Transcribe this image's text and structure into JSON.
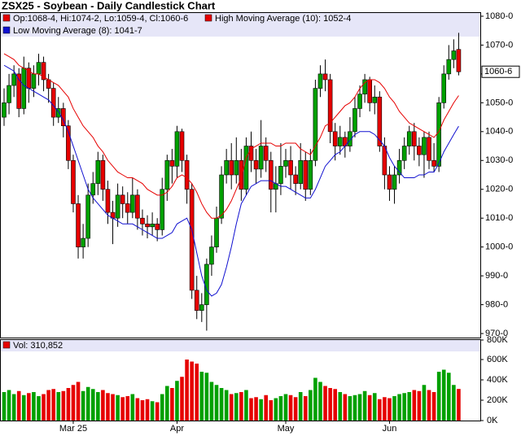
{
  "chart_data": {
    "type": "candlestick",
    "title": "ZSX25 - Soybean - Daily Candlestick Chart",
    "legend_text": "Op:1068-4, Hi:1074-2, Lo:1059-4, Cl:1060-6",
    "last_price_label": "1060-6",
    "up_color": "#00a000",
    "down_color": "#e60000",
    "categories": [
      null,
      null,
      null,
      null,
      null,
      null,
      null,
      null,
      null,
      null,
      null,
      null,
      null,
      null,
      "Mar 25",
      null,
      null,
      null,
      null,
      null,
      null,
      null,
      null,
      null,
      null,
      null,
      null,
      null,
      null,
      null,
      null,
      null,
      null,
      null,
      null,
      "Apr",
      null,
      null,
      null,
      null,
      null,
      null,
      null,
      null,
      null,
      null,
      null,
      null,
      null,
      null,
      null,
      null,
      null,
      null,
      null,
      null,
      null,
      "May",
      null,
      null,
      null,
      null,
      null,
      null,
      null,
      null,
      null,
      null,
      null,
      null,
      null,
      null,
      null,
      null,
      null,
      null,
      null,
      null,
      "Jun",
      null,
      null,
      null,
      null,
      null,
      null,
      null,
      null,
      null,
      null,
      null,
      null,
      null,
      null
    ],
    "open": [
      1045,
      1050,
      1056,
      1060,
      1048,
      1062,
      1055,
      1060,
      1064,
      1058,
      1055,
      1045,
      1048,
      1042,
      1030,
      1015,
      1000,
      1003,
      1018,
      1022,
      1030,
      1020,
      1012,
      1010,
      1018,
      1015,
      1012,
      1018,
      1010,
      1008,
      1007,
      1008,
      1006,
      1020,
      1030,
      1028,
      1040,
      1030,
      1020,
      985,
      978,
      980,
      994,
      1000,
      1010,
      1025,
      1030,
      1025,
      1030,
      1020,
      1035,
      1030,
      1027,
      1035,
      1030,
      1020,
      1022,
      1028,
      1030,
      1025,
      1022,
      1030,
      1020,
      1030,
      1055,
      1060,
      1058,
      1040,
      1035,
      1038,
      1035,
      1040,
      1048,
      1053,
      1058,
      1050,
      1052,
      1035,
      1025,
      1020,
      1025,
      1030,
      1035,
      1040,
      1035,
      1032,
      1038,
      1030,
      1028,
      1050,
      1060,
      1065,
      1068.5
    ],
    "high": [
      1055,
      1060,
      1063,
      1062,
      1066,
      1064,
      1063,
      1067,
      1066,
      1060,
      1057,
      1052,
      1050,
      1044,
      1032,
      1018,
      1008,
      1022,
      1026,
      1033,
      1032,
      1023,
      1016,
      1022,
      1021,
      1019,
      1024,
      1020,
      1013,
      1011,
      1012,
      1010,
      1024,
      1032,
      1034,
      1042,
      1041,
      1032,
      1022,
      990,
      984,
      996,
      1004,
      1014,
      1028,
      1034,
      1036,
      1038,
      1034,
      1038,
      1040,
      1034,
      1044,
      1038,
      1033,
      1028,
      1036,
      1034,
      1035,
      1028,
      1036,
      1033,
      1034,
      1058,
      1063,
      1065,
      1060,
      1043,
      1042,
      1040,
      1045,
      1052,
      1056,
      1060,
      1059,
      1056,
      1054,
      1038,
      1028,
      1028,
      1034,
      1038,
      1042,
      1043,
      1038,
      1040,
      1040,
      1036,
      1052,
      1063,
      1070,
      1072,
      1074.25
    ],
    "low": [
      1042,
      1046,
      1052,
      1045,
      1046,
      1050,
      1052,
      1056,
      1054,
      1050,
      1042,
      1043,
      1038,
      1027,
      1012,
      996,
      996,
      1000,
      1015,
      1018,
      1016,
      1008,
      1001,
      1007,
      1010,
      1008,
      1010,
      1006,
      1004,
      1003,
      1004,
      1002,
      1004,
      1016,
      1022,
      1024,
      1026,
      1015,
      982,
      975,
      974,
      971,
      990,
      998,
      1008,
      1022,
      1020,
      1022,
      1016,
      1018,
      1026,
      1022,
      1024,
      1026,
      1012,
      1012,
      1018,
      1024,
      1020,
      1018,
      1020,
      1016,
      1018,
      1028,
      1052,
      1054,
      1036,
      1030,
      1032,
      1031,
      1033,
      1038,
      1045,
      1050,
      1047,
      1046,
      1033,
      1020,
      1016,
      1015,
      1022,
      1027,
      1032,
      1030,
      1028,
      1024,
      1027,
      1026,
      1026,
      1048,
      1058,
      1062,
      1059.5
    ],
    "close": [
      1050,
      1056,
      1060,
      1048,
      1062,
      1055,
      1060,
      1064,
      1058,
      1055,
      1045,
      1048,
      1042,
      1030,
      1015,
      1000,
      1003,
      1018,
      1022,
      1030,
      1020,
      1012,
      1010,
      1018,
      1015,
      1012,
      1018,
      1010,
      1008,
      1007,
      1008,
      1006,
      1020,
      1030,
      1028,
      1040,
      1030,
      1020,
      985,
      978,
      980,
      994,
      1000,
      1010,
      1025,
      1030,
      1025,
      1030,
      1020,
      1035,
      1030,
      1027,
      1035,
      1030,
      1020,
      1022,
      1028,
      1030,
      1025,
      1022,
      1030,
      1020,
      1030,
      1055,
      1060,
      1058,
      1040,
      1035,
      1038,
      1035,
      1040,
      1048,
      1053,
      1058,
      1050,
      1052,
      1035,
      1025,
      1020,
      1025,
      1030,
      1035,
      1040,
      1035,
      1032,
      1038,
      1030,
      1028,
      1050,
      1060,
      1065,
      1068,
      1060.75
    ],
    "ylim": [
      968.6,
      1081.4
    ],
    "yticks": [
      {
        "value": 970,
        "label": "970-0"
      },
      {
        "value": 980,
        "label": "980-0"
      },
      {
        "value": 990,
        "label": "990-0"
      },
      {
        "value": 1000,
        "label": "1000-0"
      },
      {
        "value": 1010,
        "label": "1010-0"
      },
      {
        "value": 1020,
        "label": "1020-0"
      },
      {
        "value": 1030,
        "label": "1030-0"
      },
      {
        "value": 1040,
        "label": "1040-0"
      },
      {
        "value": 1050,
        "label": "1050-0"
      },
      {
        "value": 1060,
        "label": "1060-0"
      },
      {
        "value": 1070,
        "label": "1070-0"
      },
      {
        "value": 1080,
        "label": "1080-0"
      }
    ],
    "series": [
      {
        "name": "High Moving Average (10): 1052-4",
        "color": "#e60000",
        "values": [
          1067,
          1066,
          1065,
          1063,
          1062,
          1061,
          1060,
          1060,
          1059,
          1058,
          1057,
          1056,
          1054,
          1052,
          1048,
          1045,
          1042,
          1040,
          1038,
          1035,
          1033,
          1030,
          1028,
          1026,
          1025,
          1024,
          1024,
          1023,
          1022,
          1020,
          1019,
          1018,
          1018,
          1019,
          1021,
          1024,
          1025,
          1024,
          1022,
          1019,
          1015,
          1012,
          1010,
          1010,
          1011,
          1013,
          1016,
          1020,
          1024,
          1031,
          1034,
          1035,
          1036,
          1036,
          1036,
          1035,
          1035,
          1036,
          1036,
          1036,
          1034,
          1033,
          1032,
          1035,
          1038,
          1042,
          1043,
          1045,
          1047,
          1049,
          1050,
          1052,
          1055,
          1057,
          1058,
          1058,
          1057,
          1055,
          1052,
          1050,
          1047,
          1045,
          1043,
          1042,
          1041,
          1040,
          1039,
          1038,
          1040,
          1044,
          1047,
          1050,
          1052.5
        ]
      },
      {
        "name": "Low Moving Average (8): 1041-7",
        "color": "#1010d0",
        "values": [
          1063,
          1062,
          1061,
          1058,
          1056,
          1055,
          1054,
          1053,
          1052,
          1051,
          1049,
          1047,
          1044,
          1040,
          1035,
          1030,
          1025,
          1020,
          1017,
          1015,
          1013,
          1011,
          1010,
          1009,
          1008,
          1008,
          1008,
          1007,
          1006,
          1005,
          1004,
          1003,
          1003,
          1004,
          1005,
          1008,
          1009,
          1010,
          1006,
          998,
          990,
          985,
          983,
          984,
          987,
          993,
          1000,
          1008,
          1015,
          1018,
          1021,
          1022,
          1023,
          1023,
          1023,
          1022,
          1021,
          1021,
          1020,
          1019,
          1018,
          1017,
          1017,
          1020,
          1024,
          1028,
          1030,
          1032,
          1033,
          1035,
          1037,
          1039,
          1040,
          1040,
          1040,
          1039,
          1037,
          1035,
          1031,
          1028,
          1026,
          1024,
          1024,
          1024,
          1025,
          1025,
          1026,
          1026,
          1029,
          1033,
          1036,
          1039,
          1041.875
        ]
      }
    ],
    "volume": {
      "legend_text": "Vol: 310,852",
      "values": [
        280000,
        300000,
        260000,
        290000,
        250000,
        270000,
        280000,
        240000,
        260000,
        300000,
        310000,
        280000,
        290000,
        320000,
        350000,
        380000,
        290000,
        330000,
        310000,
        280000,
        300000,
        270000,
        260000,
        250000,
        230000,
        240000,
        260000,
        220000,
        200000,
        210000,
        190000,
        180000,
        260000,
        340000,
        320000,
        390000,
        430000,
        600000,
        580000,
        560000,
        480000,
        470000,
        380000,
        350000,
        320000,
        300000,
        260000,
        270000,
        280000,
        300000,
        220000,
        230000,
        210000,
        250000,
        200000,
        220000,
        240000,
        260000,
        250000,
        230000,
        280000,
        240000,
        300000,
        420000,
        380000,
        340000,
        320000,
        310000,
        280000,
        260000,
        240000,
        250000,
        260000,
        290000,
        250000,
        270000,
        210000,
        230000,
        220000,
        240000,
        260000,
        270000,
        280000,
        300000,
        290000,
        350000,
        300000,
        280000,
        480000,
        500000,
        470000,
        350000,
        310852
      ],
      "ylim": [
        0,
        800000
      ],
      "yticks": [
        {
          "value": 0,
          "label": "0K"
        },
        {
          "value": 200000,
          "label": "200K"
        },
        {
          "value": 400000,
          "label": "400K"
        },
        {
          "value": 600000,
          "label": "600K"
        },
        {
          "value": 800000,
          "label": "800K"
        }
      ]
    }
  }
}
